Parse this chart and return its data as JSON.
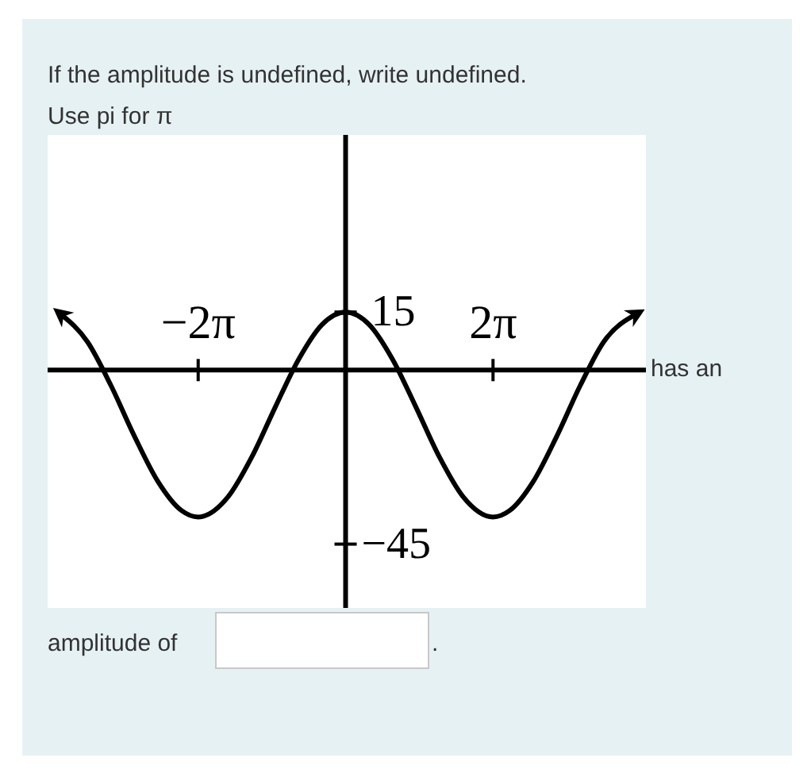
{
  "chart_data": {
    "type": "line",
    "title": "If the amplitude is undefined, write undefined.",
    "subtitle": "Use pi for π",
    "x": [
      -12.15,
      -11,
      -10,
      -9,
      -8,
      -7,
      -6.283,
      -5,
      -4,
      -3,
      -2,
      -1,
      0,
      1,
      2,
      3,
      4,
      5,
      6.283,
      7,
      8,
      9,
      10,
      11,
      12.4
    ],
    "series": [
      {
        "color": "#000000",
        "values": [
          14.5,
          7.3,
          -4.0,
          -17.1,
          -28.8,
          -36.3,
          -38,
          -32.7,
          -22.5,
          -9.6,
          2.8,
          11.8,
          15,
          11.8,
          2.8,
          -9.6,
          -22.5,
          -32.7,
          -38,
          -36.3,
          -28.8,
          -17.1,
          -4.0,
          7.3,
          14.5
        ]
      }
    ],
    "xlim": [
      -12.7,
      12.8
    ],
    "ylim": [
      -61.5,
      60.8
    ],
    "xticks": [
      {
        "value": -6.283,
        "label": "−2π"
      },
      {
        "value": 6.283,
        "label": "2π"
      }
    ],
    "yticks": [
      {
        "value": -45,
        "label": "−45"
      },
      15
    ],
    "annotations": [
      "has an",
      "amplitude of",
      "."
    ]
  }
}
